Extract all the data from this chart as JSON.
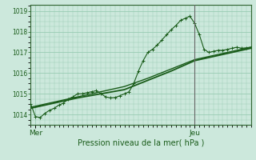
{
  "xlabel": "Pression niveau de la mer( hPa )",
  "background_color": "#cce8dc",
  "grid_color": "#99ccb3",
  "line_color": "#1a5c1a",
  "marker_color": "#1a5c1a",
  "vline_color": "#666666",
  "ylim": [
    1013.5,
    1019.3
  ],
  "xlim": [
    0,
    47
  ],
  "yticks": [
    1014,
    1015,
    1016,
    1017,
    1018,
    1019
  ],
  "mer_x": 1,
  "jeu_x": 35,
  "vline_x": 35,
  "series1_x": [
    0,
    1,
    2,
    3,
    4,
    5,
    6,
    7,
    8,
    9,
    10,
    11,
    12,
    13,
    14,
    15,
    16,
    17,
    18,
    19,
    20,
    21,
    22,
    23,
    24,
    25,
    26,
    27,
    28,
    29,
    30,
    31,
    32,
    33,
    34,
    35,
    36,
    37,
    38,
    39,
    40,
    41,
    42,
    43,
    44,
    45,
    46,
    47
  ],
  "series1_y": [
    1014.5,
    1013.9,
    1013.85,
    1014.05,
    1014.2,
    1014.3,
    1014.45,
    1014.55,
    1014.75,
    1014.85,
    1015.0,
    1015.0,
    1015.05,
    1015.1,
    1015.15,
    1015.0,
    1014.85,
    1014.8,
    1014.82,
    1014.9,
    1015.0,
    1015.1,
    1015.5,
    1016.1,
    1016.6,
    1017.0,
    1017.15,
    1017.35,
    1017.6,
    1017.85,
    1018.1,
    1018.3,
    1018.55,
    1018.65,
    1018.75,
    1018.4,
    1017.85,
    1017.15,
    1017.0,
    1017.05,
    1017.1,
    1017.1,
    1017.15,
    1017.2,
    1017.25,
    1017.2,
    1017.22,
    1017.25
  ],
  "series2_x": [
    0,
    5,
    10,
    15,
    20,
    25,
    30,
    35,
    40,
    45,
    47
  ],
  "series2_y": [
    1014.3,
    1014.55,
    1014.8,
    1015.0,
    1015.2,
    1015.65,
    1016.1,
    1016.6,
    1016.85,
    1017.1,
    1017.2
  ],
  "series3_x": [
    0,
    5,
    10,
    15,
    20,
    25,
    30,
    35,
    40,
    45,
    47
  ],
  "series3_y": [
    1014.35,
    1014.6,
    1014.85,
    1015.1,
    1015.35,
    1015.75,
    1016.2,
    1016.65,
    1016.9,
    1017.15,
    1017.25
  ],
  "figsize": [
    3.2,
    2.0
  ],
  "dpi": 100
}
